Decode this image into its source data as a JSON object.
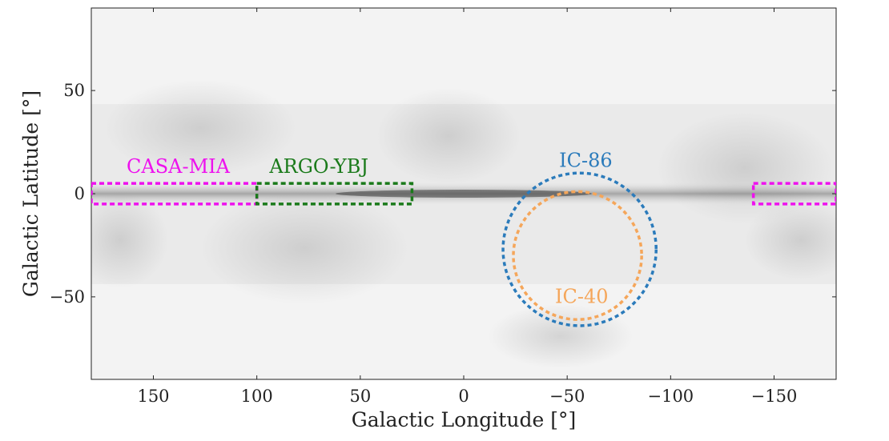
{
  "chart_data": {
    "type": "scatter",
    "xlabel": "Galactic Longitude [°]",
    "ylabel": "Galactic Latitude [°]",
    "xlim": [
      180,
      -180
    ],
    "ylim": [
      -90,
      90
    ],
    "x_reversed": true,
    "grid": false,
    "background": "grayscale all-sky map, darker band along the galactic plane",
    "xticks": [
      150,
      100,
      50,
      0,
      -50,
      -100,
      -150
    ],
    "xtick_labels": [
      "150",
      "100",
      "50",
      "0",
      "−50",
      "−100",
      "−150"
    ],
    "yticks": [
      50,
      0,
      -50
    ],
    "ytick_labels": [
      "50",
      "0",
      "−50"
    ],
    "regions": [
      {
        "label": "CASA-MIA",
        "color": "#ee11ee",
        "shape": "box",
        "lon_ranges": [
          [
            180,
            100
          ],
          [
            -140,
            -180
          ]
        ],
        "lat": [
          -5,
          5
        ]
      },
      {
        "label": "ARGO-YBJ",
        "color": "#1a7a1a",
        "shape": "box",
        "lon_ranges": [
          [
            100,
            25
          ]
        ],
        "lat": [
          -5,
          5
        ]
      },
      {
        "label": "IC-86",
        "color": "#2b7bbb",
        "shape": "circle",
        "center": [
          -56,
          -27
        ],
        "radius_deg": 37
      },
      {
        "label": "IC-40",
        "color": "#f5a65a",
        "shape": "circle",
        "center": [
          -55,
          -30
        ],
        "radius_deg": 31
      }
    ]
  }
}
